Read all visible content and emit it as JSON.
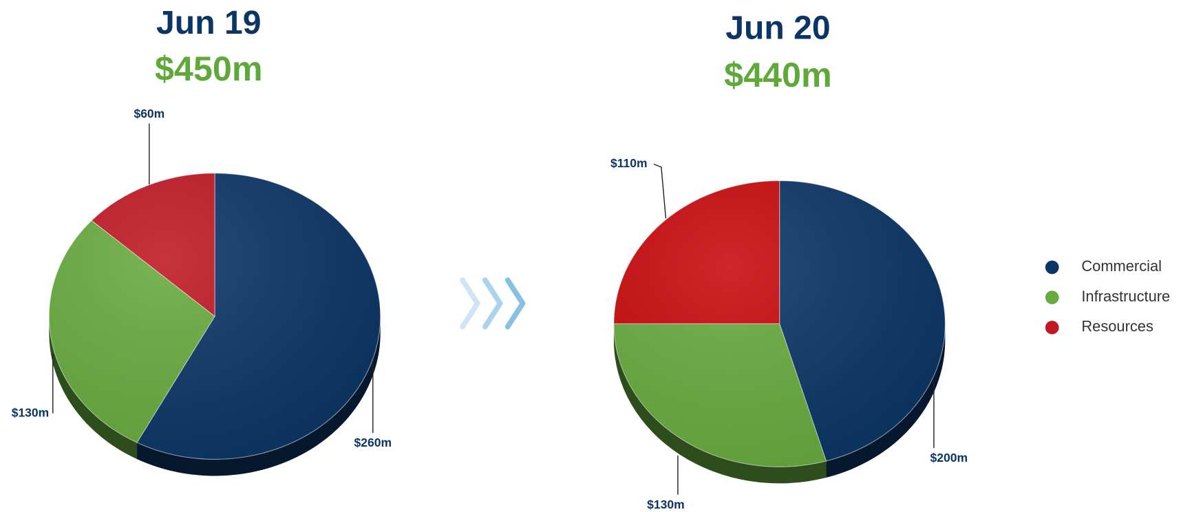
{
  "chart_data": [
    {
      "type": "pie",
      "title": "Jun 19",
      "subtitle": "$450m",
      "categories": [
        "Commercial",
        "Infrastructure",
        "Resources"
      ],
      "values": [
        260,
        130,
        60
      ],
      "value_labels": [
        "$260m",
        "$130m",
        "$60m"
      ],
      "colors": [
        "#0b3565",
        "#67aa3e",
        "#bf1823"
      ]
    },
    {
      "type": "pie",
      "title": "Jun 20",
      "subtitle": "$440m",
      "categories": [
        "Commercial",
        "Infrastructure",
        "Resources"
      ],
      "values": [
        200,
        130,
        110
      ],
      "value_labels": [
        "$200m",
        "$130m",
        "$110m"
      ],
      "colors": [
        "#0b3565",
        "#67aa3e",
        "#c8090c"
      ]
    }
  ]
}
